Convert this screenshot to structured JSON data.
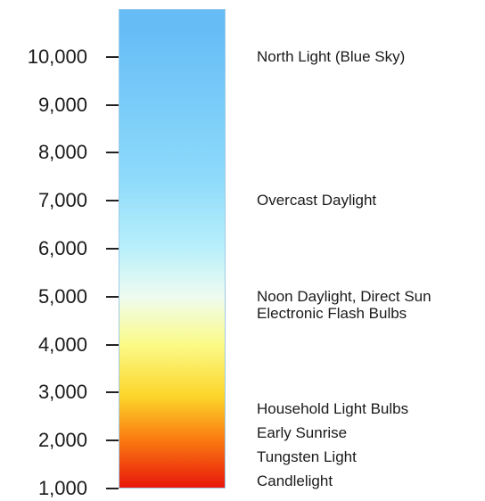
{
  "scale": {
    "ticks": [
      "1,000",
      "2,000",
      "3,000",
      "4,000",
      "5,000",
      "6,000",
      "7,000",
      "8,000",
      "9,000",
      "10,000"
    ],
    "tick_values": [
      1000,
      2000,
      3000,
      4000,
      5000,
      6000,
      7000,
      8000,
      9000,
      10000
    ],
    "gradient_stops": [
      {
        "value": 1000,
        "color": "#e8180c"
      },
      {
        "value": 2000,
        "color": "#fa7a10"
      },
      {
        "value": 2900,
        "color": "#fcd52a"
      },
      {
        "value": 4000,
        "color": "#fbfb88"
      },
      {
        "value": 5000,
        "color": "#eefbf0"
      },
      {
        "value": 6000,
        "color": "#b9f0fb"
      },
      {
        "value": 7500,
        "color": "#8ddafb"
      },
      {
        "value": 10600,
        "color": "#66bdf6"
      }
    ],
    "bar_border_color": "#9ecbe6"
  },
  "light_sources": [
    {
      "label": "North Light (Blue Sky)",
      "value": 10000
    },
    {
      "label": "Overcast Daylight",
      "value": 7000
    },
    {
      "label": "Noon Daylight, Direct Sun",
      "value": 5000
    },
    {
      "label": "Electronic Flash Bulbs",
      "value": 4650
    },
    {
      "label": "Household Light Bulbs",
      "value": 2650
    },
    {
      "label": "Early Sunrise",
      "value": 2150
    },
    {
      "label": "Tungsten Light",
      "value": 1650
    },
    {
      "label": "Candlelight",
      "value": 1150
    }
  ]
}
